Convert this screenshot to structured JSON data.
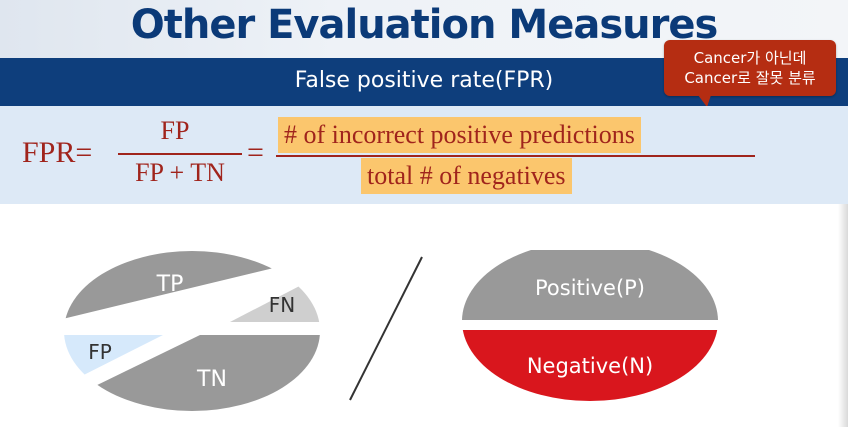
{
  "slide": {
    "title": "Other Evaluation Measures",
    "subtitle": "False positive rate(FPR)"
  },
  "callout": {
    "line1": "Cancer가 아닌데",
    "line2": "Cancer로 잘못 분류"
  },
  "formula": {
    "lhs": "FPR=",
    "fraction_numerator": "FP",
    "fraction_denominator": "FP + TN",
    "equals": "=",
    "text_numerator": "# of incorrect positive predictions",
    "text_denominator": "total # of negatives"
  },
  "left_diagram": {
    "tp": "TP",
    "fn": "FN",
    "fp": "FP",
    "tn": "TN"
  },
  "right_diagram": {
    "positive": "Positive(P)",
    "negative": "Negative(N)"
  },
  "colors": {
    "title": "#0b3a78",
    "subtitle_bar": "#0e3e7c",
    "callout": "#b52d12",
    "formula_text": "#a0241c",
    "highlight": "#fbc66d",
    "gray_region": "#999999",
    "light_gray_region": "#cfcfcf",
    "light_blue_region": "#d6e9fb",
    "negative_region": "#d9161d"
  }
}
